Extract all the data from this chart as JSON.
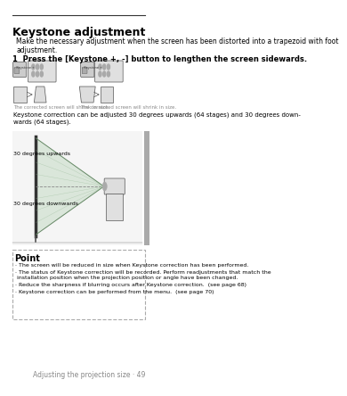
{
  "title": "Keystone adjustment",
  "subtitle": "Make the necessary adjustment when the screen has been distorted into a trapezoid with foot\nadjustment.",
  "step1": "1  Press the [Keystone +, -] button to lengthen the screen sidewards.",
  "caption1": "The corrected screen will shrink in size.",
  "caption2": "The corrected screen will shrink in size.",
  "keystone_text": "Keystone correction can be adjusted 30 degrees upwards (64 stages) and 30 degrees down-\nwards (64 stages).",
  "label_up": "30 degrees upwards",
  "label_down": "30 degrees downwards",
  "point_title": "Point",
  "point_bullets": [
    "The screen will be reduced in size when Keystone correction has been performed.",
    "The status of Keystone correction will be recorded. Perform readjustments that match the\ninstallation position when the projection position or angle have been changed.",
    "Reduce the sharpness if blurring occurs after Keystone correction.  (see page 68)",
    "Keystone correction can be performed from the menu.  (see page 70)"
  ],
  "footer": "Adjusting the projection size · 49",
  "bg_color": "#ffffff",
  "text_color": "#000000",
  "gray_color": "#888888",
  "light_gray": "#cccccc",
  "sidebar_color": "#888888",
  "dashed_color": "#aaaaaa",
  "green_color": "#90c090",
  "title_line_color": "#333333"
}
